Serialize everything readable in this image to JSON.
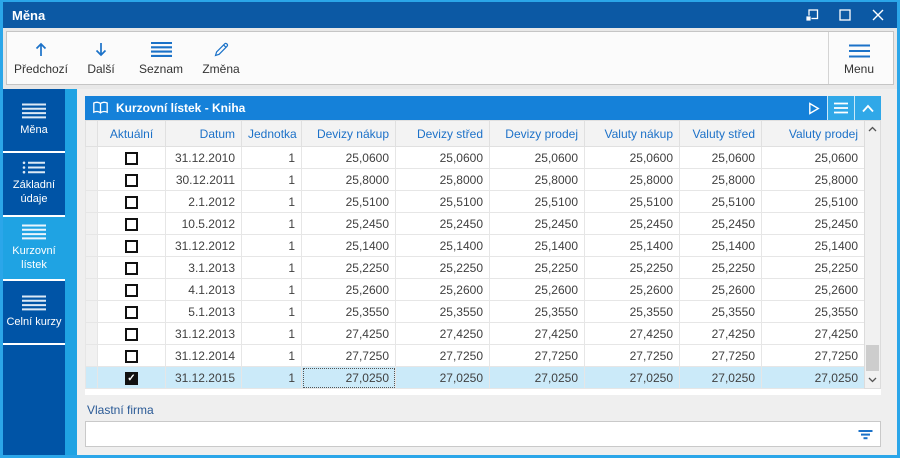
{
  "window": {
    "title": "Měna",
    "controls": {
      "dock": "dock-restore",
      "maximize": "maximize",
      "close": "close"
    }
  },
  "toolbar": {
    "buttons": [
      {
        "label": "Předchozí",
        "icon": "arrow-up"
      },
      {
        "label": "Další",
        "icon": "arrow-down"
      },
      {
        "label": "Seznam",
        "icon": "list-lines"
      },
      {
        "label": "Změna",
        "icon": "pencil"
      }
    ],
    "menu": {
      "label": "Menu",
      "icon": "hamburger"
    }
  },
  "sidebar": {
    "items": [
      {
        "label": "Měna",
        "icon": "hamburger",
        "active": false
      },
      {
        "label": "Základní údaje",
        "icon": "list-dots",
        "active": false
      },
      {
        "label": "Kurzovní lístek",
        "icon": "hamburger",
        "active": true
      },
      {
        "label": "Celní kurzy",
        "icon": "hamburger",
        "active": false
      }
    ]
  },
  "panel": {
    "title": "Kurzovní lístek - Kniha",
    "title_icon": "open-book",
    "header_icons": [
      "play",
      "hamburger",
      "chevron-up"
    ]
  },
  "table": {
    "columns": [
      "Aktuální",
      "Datum",
      "Jednotka",
      "Devizy nákup",
      "Devizy střed",
      "Devizy prodej",
      "Valuty nákup",
      "Valuty střed",
      "Valuty prodej"
    ],
    "rows": [
      {
        "checked": false,
        "cells": [
          "31.12.2010",
          "1",
          "25,0600",
          "25,0600",
          "25,0600",
          "25,0600",
          "25,0600",
          "25,0600"
        ]
      },
      {
        "checked": false,
        "cells": [
          "30.12.2011",
          "1",
          "25,8000",
          "25,8000",
          "25,8000",
          "25,8000",
          "25,8000",
          "25,8000"
        ]
      },
      {
        "checked": false,
        "cells": [
          "2.1.2012",
          "1",
          "25,5100",
          "25,5100",
          "25,5100",
          "25,5100",
          "25,5100",
          "25,5100"
        ]
      },
      {
        "checked": false,
        "cells": [
          "10.5.2012",
          "1",
          "25,2450",
          "25,2450",
          "25,2450",
          "25,2450",
          "25,2450",
          "25,2450"
        ]
      },
      {
        "checked": false,
        "cells": [
          "31.12.2012",
          "1",
          "25,1400",
          "25,1400",
          "25,1400",
          "25,1400",
          "25,1400",
          "25,1400"
        ]
      },
      {
        "checked": false,
        "cells": [
          "3.1.2013",
          "1",
          "25,2250",
          "25,2250",
          "25,2250",
          "25,2250",
          "25,2250",
          "25,2250"
        ]
      },
      {
        "checked": false,
        "cells": [
          "4.1.2013",
          "1",
          "25,2600",
          "25,2600",
          "25,2600",
          "25,2600",
          "25,2600",
          "25,2600"
        ]
      },
      {
        "checked": false,
        "cells": [
          "5.1.2013",
          "1",
          "25,3550",
          "25,3550",
          "25,3550",
          "25,3550",
          "25,3550",
          "25,3550"
        ]
      },
      {
        "checked": false,
        "cells": [
          "31.12.2013",
          "1",
          "27,4250",
          "27,4250",
          "27,4250",
          "27,4250",
          "27,4250",
          "27,4250"
        ]
      },
      {
        "checked": false,
        "cells": [
          "31.12.2014",
          "1",
          "27,7250",
          "27,7250",
          "27,7250",
          "27,7250",
          "27,7250",
          "27,7250"
        ]
      },
      {
        "checked": true,
        "cells": [
          "31.12.2015",
          "1",
          "27,0250",
          "27,0250",
          "27,0250",
          "27,0250",
          "27,0250",
          "27,0250"
        ]
      }
    ],
    "selected_row_index": 10,
    "focused_cell": {
      "row": 10,
      "cell": 2
    }
  },
  "form": {
    "label": "Vlastní firma",
    "combo_value": ""
  },
  "colors": {
    "titlebar": "#0C59A4",
    "sidebar": "#0054A6",
    "accent_light": "#1FA3E3",
    "panel_header": "#1581D9",
    "table_header_text": "#1C71C8",
    "selected_row": "#CBEAF9",
    "toolbar_icon": "#1B72C8"
  }
}
